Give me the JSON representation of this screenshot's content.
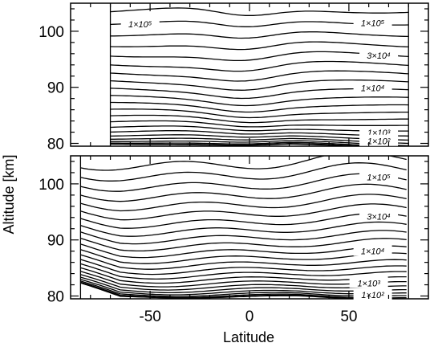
{
  "chart_data": [
    {
      "type": "contour",
      "panel": "top",
      "xlim": [
        -90,
        90
      ],
      "ylim": [
        79.5,
        105
      ],
      "ylabel": "Altitude [km]",
      "yticks": [
        80,
        90,
        100
      ],
      "ytick_labels": [
        "80",
        "90",
        "100"
      ],
      "data_lon_range": [
        -70,
        80
      ],
      "contours": [
        {
          "level_label": "1×10⁵",
          "lat": -55,
          "alt": 101.3
        },
        {
          "level_label": "1×10⁵",
          "lat": 62,
          "alt": 101.5
        },
        {
          "level_label": "3×10⁴",
          "lat": 65,
          "alt": 95.7
        },
        {
          "level_label": "1×10⁴",
          "lat": 62,
          "alt": 89.9
        },
        {
          "level_label": "1×10³",
          "lat": 65,
          "alt": 81.9
        },
        {
          "level_label": "1×10²",
          "lat": 65,
          "alt": 80.4
        }
      ]
    },
    {
      "type": "contour",
      "panel": "bottom",
      "xlim": [
        -90,
        90
      ],
      "ylim": [
        79.5,
        105
      ],
      "xlabel": "Latitude",
      "ylabel": "Altitude [km]",
      "xticks": [
        -50,
        0,
        50
      ],
      "xtick_labels": [
        "-50",
        "0",
        "50"
      ],
      "yticks": [
        80,
        90,
        100
      ],
      "ytick_labels": [
        "80",
        "90",
        "100"
      ],
      "data_lon_range": [
        -85,
        80
      ],
      "contours": [
        {
          "level_label": "1×10⁵",
          "lat": 65,
          "alt": 101.2
        },
        {
          "level_label": "3×10⁴",
          "lat": 65,
          "alt": 94.2
        },
        {
          "level_label": "1×10⁴",
          "lat": 62,
          "alt": 88.0
        },
        {
          "level_label": "1×10³",
          "lat": 60,
          "alt": 82.3
        },
        {
          "level_label": "1×10²",
          "lat": 62,
          "alt": 80.2
        }
      ]
    }
  ]
}
